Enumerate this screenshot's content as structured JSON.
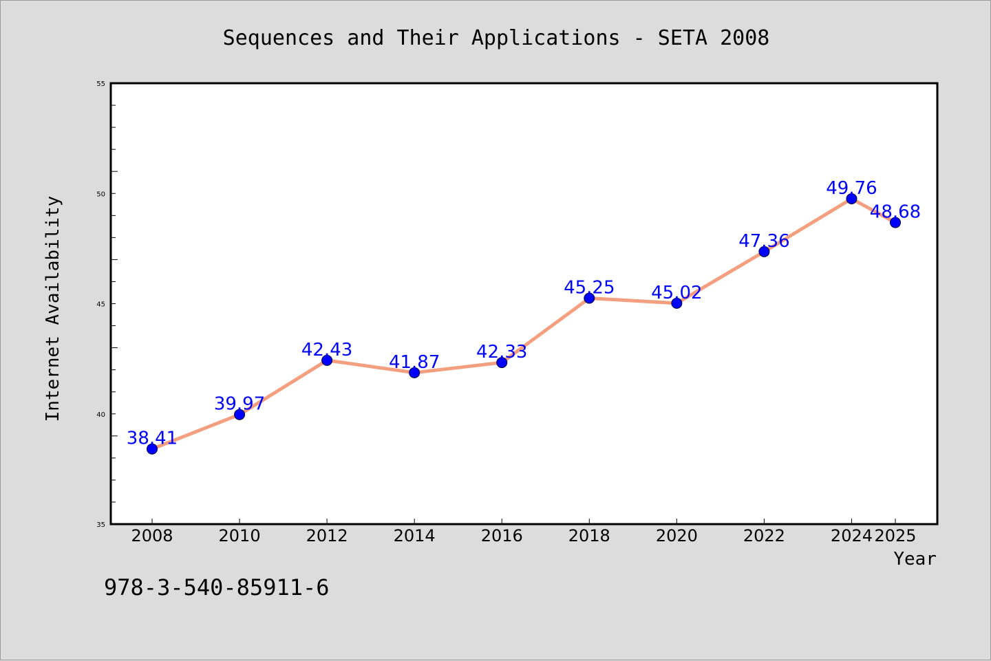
{
  "chart_data": {
    "type": "line",
    "title": "Sequences and Their Applications - SETA 2008",
    "xlabel": "Year",
    "ylabel": "Internet Availability",
    "x": [
      "2008",
      "2010",
      "2012",
      "2014",
      "2016",
      "2018",
      "2020",
      "2022",
      "2024",
      "2025"
    ],
    "series": [
      {
        "values": [
          38.41,
          39.97,
          42.43,
          41.87,
          42.33,
          45.25,
          45.02,
          47.36,
          49.76,
          48.68
        ],
        "line_color": "#f4a080",
        "marker_color": "#0000ff"
      }
    ],
    "data_labels": [
      "38.41",
      "39.97",
      "42.43",
      "41.87",
      "42.33",
      "45.25",
      "45.02",
      "47.36",
      "49.76",
      "48.68"
    ],
    "ylim": [
      35,
      55
    ],
    "yticks": [
      35,
      40,
      45,
      50,
      55
    ],
    "ytick_labels": [
      "35",
      "40",
      "45",
      "50",
      "55"
    ],
    "grid": false,
    "legend": "none"
  },
  "footer": {
    "isbn": "978-3-540-85911-6"
  }
}
